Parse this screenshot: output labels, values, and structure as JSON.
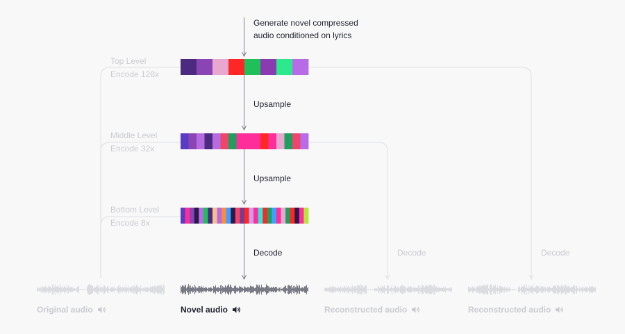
{
  "generate_label": [
    "Generate novel compressed",
    "audio conditioned on lyrics"
  ],
  "levels": [
    {
      "name": "Top Level",
      "encode": "Encode 128x",
      "codes": [
        "#4b2a7f",
        "#8a44b3",
        "#e8a7ce",
        "#ff2626",
        "#1fbf5a",
        "#8b3bb0",
        "#2ee88e",
        "#b86be6"
      ]
    },
    {
      "name": "Middle Level",
      "encode": "Encode 32x",
      "codes": [
        "#5a3cc4",
        "#8a44b3",
        "#b76be0",
        "#4b2a7f",
        "#b66bde",
        "#f0456a",
        "#1f9e5f",
        "#ff2d9a",
        "#ff2d9a",
        "#ff2d9a",
        "#ff2626",
        "#ff2d9a",
        "#e8a7ce",
        "#1f9e5f",
        "#f0456a",
        "#b86be6"
      ]
    },
    {
      "name": "Bottom Level",
      "encode": "Encode 8x",
      "codes": [
        "#5a3cc4",
        "#ff2d9a",
        "#8a44b3",
        "#2a1a4a",
        "#b86be6",
        "#1fbf5a",
        "#4b2a7f",
        "#f7c08a",
        "#b76be0",
        "#ff8a3d",
        "#3ea1ff",
        "#2a1a4a",
        "#f0456a",
        "#7a3b8f",
        "#ff2626",
        "#c99ef0",
        "#ff2d9a",
        "#2ee8d8",
        "#ff2626",
        "#1f9e5f",
        "#3ea1ff",
        "#ff2d9a",
        "#e8a7ce",
        "#1f9e5f",
        "#ff2626",
        "#2a1a4a",
        "#ff2d9a",
        "#b5e63a"
      ]
    }
  ],
  "steps": [
    "Upsample",
    "Upsample",
    "Decode"
  ],
  "side_decode": [
    "Decode",
    "Decode"
  ],
  "audio": [
    {
      "label": "Original audio",
      "speaker_icon": "speaker-icon",
      "active": false
    },
    {
      "label": "Novel audio",
      "speaker_icon": "speaker-icon",
      "active": true
    },
    {
      "label": "Reconstructed audio",
      "speaker_icon": "speaker-icon",
      "active": false
    },
    {
      "label": "Reconstructed audio",
      "speaker_icon": "speaker-icon",
      "active": false
    }
  ],
  "colors": {
    "dark": "#222531",
    "faint": "#c9cbd0",
    "wave_active": "#6a6c78",
    "wave_faint": "#d6d8dc",
    "line": "#e6e7ea",
    "arrow": "#7d7f88"
  }
}
